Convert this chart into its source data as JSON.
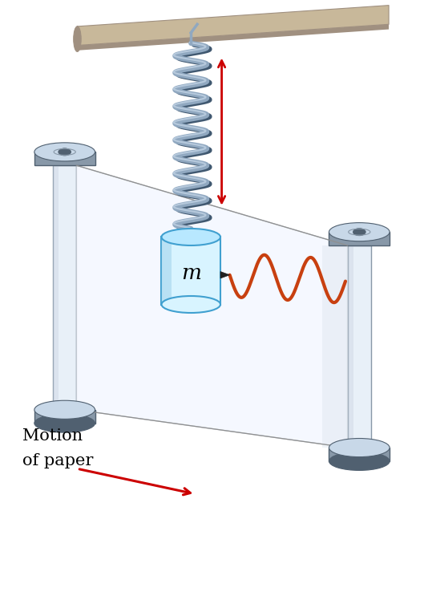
{
  "bg_color": "#ffffff",
  "figure_size": [
    5.29,
    7.38
  ],
  "dpi": 100,
  "rod_color": "#c8b89a",
  "rod_dark": "#a09080",
  "spring_color": "#90a8c0",
  "spring_highlight": "#d0e0f0",
  "spring_shadow": "#405870",
  "mass_top_color": "#b8e8ff",
  "mass_side_color": "#d8f4ff",
  "mass_side_dark": "#80c0e0",
  "mass_outline": "#40a0d0",
  "mass_label": "m",
  "spool_flange_light": "#c8d8e8",
  "spool_flange_mid": "#8898a8",
  "spool_flange_dark": "#506070",
  "spool_body_color": "#e8f0f8",
  "spool_body_edge": "#8898a8",
  "paper_color": "#f5f8ff",
  "paper_shade": "#e0e8f0",
  "paper_edge": "#c0c8d0",
  "wave_color": "#c84010",
  "arrow_color": "#cc0000",
  "text_color": "#000000",
  "motion_label": [
    "Motion",
    "of paper"
  ],
  "motion_label_fontsize": 15
}
